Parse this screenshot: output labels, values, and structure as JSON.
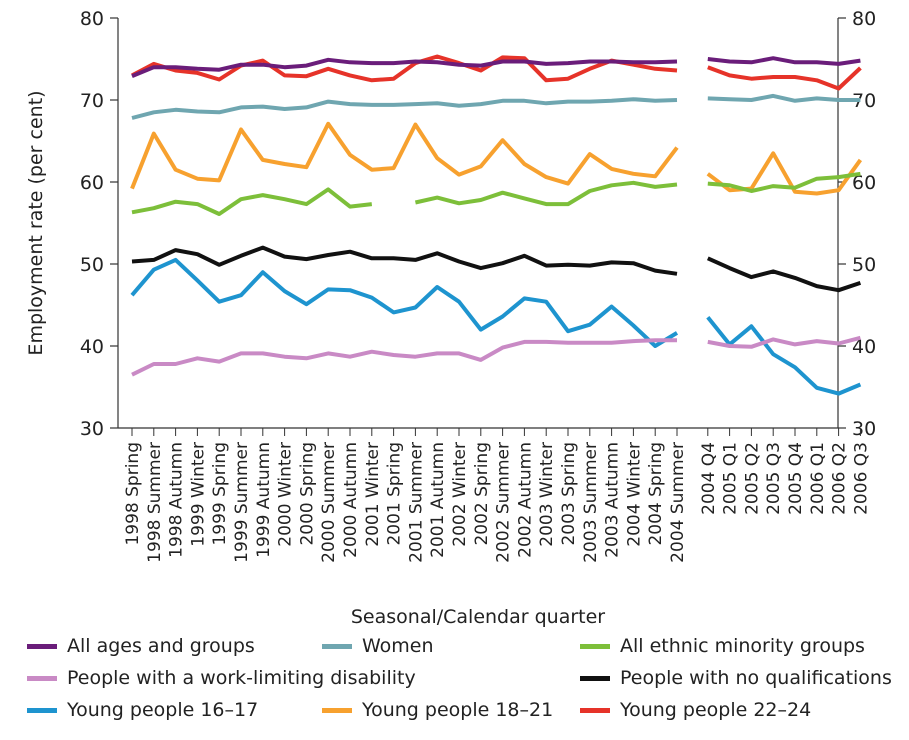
{
  "chart_data": {
    "type": "line",
    "xlabel": "Seasonal/Calendar quarter",
    "ylabel": "Employment rate (per cent)",
    "ylim": [
      30,
      80
    ],
    "yticks": [
      30,
      40,
      50,
      60,
      70,
      80
    ],
    "gap_after_index": 26,
    "categories": [
      "1998 Spring",
      "1998 Summer",
      "1998 Autumn",
      "1999 Winter",
      "1999 Spring",
      "1999 Summer",
      "1999 Autumn",
      "2000 Winter",
      "2000 Spring",
      "2000 Summer",
      "2000 Autumn",
      "2001 Winter",
      "2001 Spring",
      "2001 Summer",
      "2001 Autumn",
      "2002 Winter",
      "2002 Spring",
      "2002 Summer",
      "2002 Autumn",
      "2003 Winter",
      "2003 Spring",
      "2003 Summer",
      "2003 Autumn",
      "2004 Winter",
      "2004 Spring",
      "2004 Summer",
      "2004 Q4",
      "2005 Q1",
      "2005 Q2",
      "2005 Q3",
      "2005 Q4",
      "2006 Q1",
      "2006 Q2",
      "2006 Q3"
    ],
    "series": [
      {
        "name": "Young people 22–24",
        "color": "#e63329",
        "values": [
          73,
          74.4,
          73.6,
          73.3,
          72.5,
          74.2,
          74.8,
          73,
          72.9,
          73.8,
          73,
          72.4,
          72.6,
          74.5,
          75.3,
          74.5,
          73.6,
          75.2,
          75.1,
          72.4,
          72.6,
          73.8,
          74.8,
          74.3,
          73.8,
          73.6,
          74,
          73,
          72.6,
          72.8,
          72.8,
          72.4,
          71.4,
          73.9
        ]
      },
      {
        "name": "All ages and groups",
        "color": "#6a1d7a",
        "values": [
          72.9,
          74,
          74,
          73.8,
          73.7,
          74.3,
          74.3,
          74,
          74.2,
          74.9,
          74.6,
          74.5,
          74.5,
          74.7,
          74.6,
          74.3,
          74.2,
          74.7,
          74.7,
          74.4,
          74.5,
          74.7,
          74.7,
          74.6,
          74.6,
          74.7,
          75,
          74.7,
          74.6,
          75.1,
          74.6,
          74.6,
          74.4,
          74.8
        ]
      },
      {
        "name": "Women",
        "color": "#6fa6b0",
        "values": [
          67.8,
          68.5,
          68.8,
          68.6,
          68.5,
          69.1,
          69.2,
          68.9,
          69.1,
          69.8,
          69.5,
          69.4,
          69.4,
          69.5,
          69.6,
          69.3,
          69.5,
          69.9,
          69.9,
          69.6,
          69.8,
          69.8,
          69.9,
          70.1,
          69.9,
          70,
          70.2,
          70.1,
          70,
          70.5,
          69.9,
          70.2,
          70,
          70
        ]
      },
      {
        "name": "Young people 18–21",
        "color": "#f7a12f",
        "values": [
          59.2,
          65.9,
          61.5,
          60.4,
          60.2,
          66.4,
          62.7,
          62.2,
          61.8,
          67.1,
          63.3,
          61.5,
          61.7,
          67,
          62.9,
          60.9,
          61.9,
          65.1,
          62.2,
          60.6,
          59.8,
          63.4,
          61.6,
          61,
          60.7,
          64.2,
          61,
          59,
          59.2,
          63.5,
          58.8,
          58.6,
          59,
          62.7
        ]
      },
      {
        "name": "All ethnic minority groups",
        "color": "#7dbf3a",
        "values": [
          56.3,
          56.8,
          57.6,
          57.3,
          56.1,
          57.9,
          58.4,
          57.9,
          57.3,
          59.1,
          57,
          57.3,
          null,
          57.5,
          58.1,
          57.4,
          57.8,
          58.7,
          58,
          57.3,
          57.3,
          58.9,
          59.6,
          59.9,
          59.4,
          59.7,
          59.8,
          59.6,
          58.9,
          59.5,
          59.3,
          60.4,
          60.6,
          61
        ]
      },
      {
        "name": "People with no qualifications",
        "color": "#111111",
        "values": [
          50.3,
          50.5,
          51.7,
          51.2,
          49.9,
          51,
          52,
          50.9,
          50.6,
          51.1,
          51.5,
          50.7,
          50.7,
          50.5,
          51.3,
          50.3,
          49.5,
          50.1,
          51,
          49.8,
          49.9,
          49.8,
          50.2,
          50.1,
          49.2,
          48.8,
          50.7,
          49.5,
          48.4,
          49.1,
          48.3,
          47.3,
          46.8,
          47.7
        ]
      },
      {
        "name": "Young people 16–17",
        "color": "#1e94cf",
        "values": [
          46.2,
          49.3,
          50.5,
          48,
          45.4,
          46.2,
          49,
          46.7,
          45.1,
          46.9,
          46.8,
          45.9,
          44.1,
          44.7,
          47.2,
          45.4,
          42,
          43.6,
          45.8,
          45.4,
          41.8,
          42.6,
          44.8,
          42.5,
          40,
          41.6,
          43.5,
          40.2,
          42.4,
          39,
          37.4,
          34.9,
          34.2,
          35.3
        ]
      },
      {
        "name": "People with a work-limiting disability",
        "color": "#c98ac5",
        "values": [
          36.5,
          37.8,
          37.8,
          38.5,
          38.1,
          39.1,
          39.1,
          38.7,
          38.5,
          39.1,
          38.7,
          39.3,
          38.9,
          38.7,
          39.1,
          39.1,
          38.3,
          39.8,
          40.5,
          40.5,
          40.4,
          40.4,
          40.4,
          40.6,
          40.7,
          40.7,
          40.5,
          40,
          39.9,
          40.8,
          40.2,
          40.6,
          40.3,
          41
        ]
      }
    ],
    "legend": [
      {
        "label": "All ages and groups",
        "color": "#6a1d7a"
      },
      {
        "label": "Women",
        "color": "#6fa6b0"
      },
      {
        "label": "All ethnic minority groups",
        "color": "#7dbf3a"
      },
      {
        "label": "People with a work-limiting disability",
        "color": "#c98ac5"
      },
      {
        "label": "People with no qualifications",
        "color": "#111111"
      },
      {
        "label": "Young people 16–17",
        "color": "#1e94cf"
      },
      {
        "label": "Young people 18–21",
        "color": "#f7a12f"
      },
      {
        "label": "Young people 22–24",
        "color": "#e63329"
      }
    ]
  }
}
